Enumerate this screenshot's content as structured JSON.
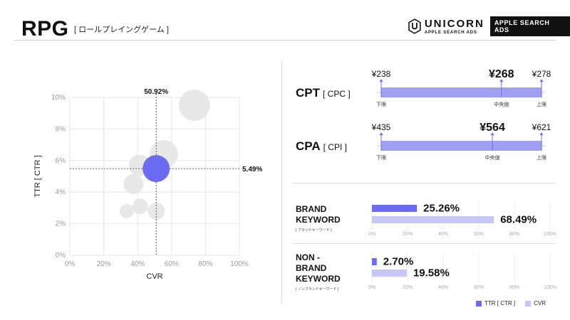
{
  "header": {
    "title": "RPG",
    "subtitle": "[ ロールプレイングゲーム ]",
    "brand": {
      "name": "UNICORN",
      "sub": "APPLE SEARCH ADS",
      "badge": "APPLE SEARCH ADS"
    }
  },
  "colors": {
    "accent": "#6b6cf2",
    "accent_light": "#c6c7f7",
    "bubble": "#e6e6e6",
    "grid": "#e5e5e5"
  },
  "chart_data": [
    {
      "type": "scatter",
      "xlabel": "CVR",
      "ylabel": "TTR [ CTR ]",
      "xlim": [
        0,
        100
      ],
      "ylim": [
        0,
        10
      ],
      "xticks": [
        "0%",
        "20%",
        "40%",
        "60%",
        "80%",
        "100%"
      ],
      "yticks": [
        "0%",
        "2%",
        "4%",
        "6%",
        "8%",
        "10%"
      ],
      "grid": true,
      "points": [
        {
          "x": 73.5,
          "y": 9.5,
          "r": 22
        },
        {
          "x": 55.5,
          "y": 6.4,
          "r": 20
        },
        {
          "x": 41,
          "y": 5.7,
          "r": 15
        },
        {
          "x": 37.5,
          "y": 4.5,
          "r": 14
        },
        {
          "x": 41.5,
          "y": 3.1,
          "r": 11
        },
        {
          "x": 51,
          "y": 2.8,
          "r": 12
        },
        {
          "x": 33.5,
          "y": 2.8,
          "r": 10
        }
      ],
      "highlight": {
        "x": 50.92,
        "y": 5.49,
        "r": 19,
        "x_label": "50.92%",
        "y_label": "5.49%"
      }
    },
    {
      "type": "range",
      "label": "CPT",
      "sublabel": "[ CPC ]",
      "min": 238,
      "median": 268,
      "max": 278,
      "min_label": "¥238",
      "median_label": "¥268",
      "max_label": "¥278",
      "captions": [
        "下限",
        "中央値",
        "上限"
      ]
    },
    {
      "type": "range",
      "label": "CPA",
      "sublabel": "[ CPI ]",
      "min": 435,
      "median": 564,
      "max": 621,
      "min_label": "¥435",
      "median_label": "¥564",
      "max_label": "¥621",
      "captions": [
        "下限",
        "中央値",
        "上限"
      ]
    },
    {
      "type": "bar",
      "title_lines": [
        "BRAND",
        "KEYWORD"
      ],
      "note": "[ ブランドキーワード ]",
      "xlim": [
        0,
        100
      ],
      "xticks": [
        "0%",
        "20%",
        "40%",
        "60%",
        "80%",
        "100%"
      ],
      "series": [
        {
          "name": "TTR [ CTR ]",
          "value": 25.26,
          "label": "25.26%"
        },
        {
          "name": "CVR",
          "value": 68.49,
          "label": "68.49%"
        }
      ]
    },
    {
      "type": "bar",
      "title_lines": [
        "NON -",
        "BRAND",
        "KEYWORD"
      ],
      "note": "[ ノンブランドキーワード ]",
      "xlim": [
        0,
        100
      ],
      "xticks": [
        "0%",
        "20%",
        "40%",
        "60%",
        "80%",
        "100%"
      ],
      "series": [
        {
          "name": "TTR [ CTR ]",
          "value": 2.7,
          "label": "2.70%"
        },
        {
          "name": "CVR",
          "value": 19.58,
          "label": "19.58%"
        }
      ]
    }
  ],
  "legend": {
    "ttr": "TTR [ CTR ]",
    "cvr": "CVR"
  }
}
